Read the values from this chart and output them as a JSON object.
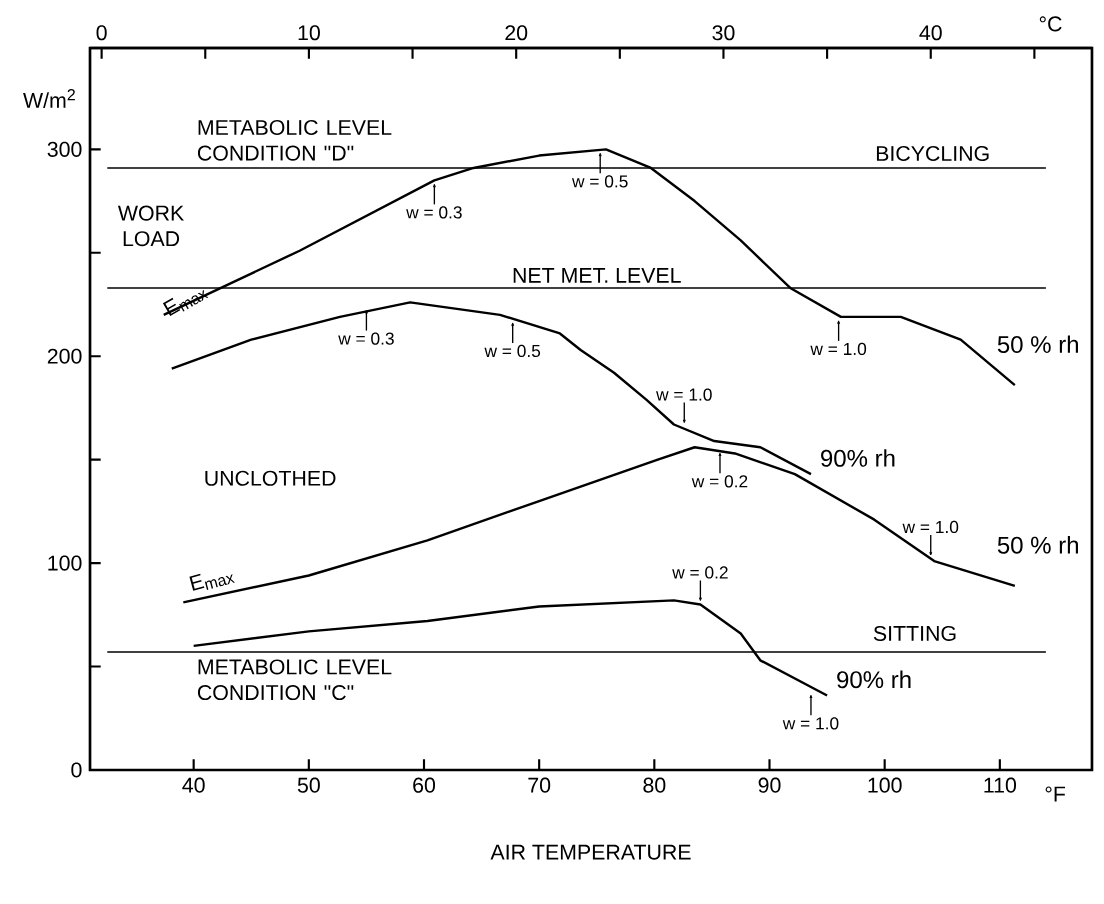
{
  "chart_data": {
    "type": "line",
    "xlabel": "AIR TEMPERATURE",
    "ylabel": "W/m$^{2}$",
    "xlim": [
      31,
      118
    ],
    "xticks": [
      40,
      50,
      60,
      70,
      80,
      90,
      100,
      110
    ],
    "x2lim": [
      -0.56,
      47.78
    ],
    "x2ticks": [
      0,
      {
        "value": 5,
        "label": null
      },
      10,
      {
        "value": 15,
        "label": null
      },
      20,
      {
        "value": 25,
        "label": null
      },
      30,
      {
        "value": 35,
        "label": null
      },
      40,
      {
        "value": 45,
        "label": null
      }
    ],
    "ylim": [
      0,
      349
    ],
    "yticks": [
      0,
      {
        "value": 50,
        "label": null
      },
      100,
      {
        "value": 150,
        "label": null
      },
      200,
      {
        "value": 250,
        "label": null
      },
      300
    ],
    "grid": false,
    "marker": "none",
    "line_style": "solid",
    "series": [
      {
        "name": "50 % rh",
        "color": "#000000",
        "x": [
          37.4,
          49.2,
          60.9,
          64.3,
          70,
          75.8,
          79.7,
          83.5,
          87.5,
          91.8,
          96.2,
          101.4,
          106.6,
          111.3
        ],
        "values": [
          220,
          251,
          285,
          291,
          297,
          300,
          291,
          275,
          256,
          233,
          219,
          219,
          208,
          186
        ]
      },
      {
        "name": "90% rh",
        "color": "#000000",
        "x": [
          38.1,
          45,
          52.7,
          58.8,
          66.6,
          71.8,
          73.6,
          76.5,
          79.3,
          81.7,
          85.2,
          89.2,
          93.6
        ],
        "values": [
          194,
          208,
          219,
          226,
          220,
          211,
          203,
          192,
          179,
          167,
          159,
          156,
          143
        ]
      },
      {
        "name": "50 % rh",
        "color": "#000000",
        "x": [
          39.1,
          50,
          60.3,
          70,
          80.3,
          83.5,
          87,
          92.2,
          99.1,
          104.3,
          111.3
        ],
        "values": [
          81,
          94,
          111,
          130,
          150,
          156,
          153,
          143,
          121,
          101,
          89
        ]
      },
      {
        "name": "90% rh",
        "color": "#000000",
        "x": [
          40,
          50,
          60.3,
          70,
          81.7,
          84,
          87.5,
          89.2,
          95
        ],
        "values": [
          60,
          67,
          72,
          79,
          82,
          80,
          66,
          53,
          36
        ]
      }
    ],
    "ref_lines": [
      {
        "axis": "y",
        "value": 291,
        "label": "METABOLIC LEVEL CONDITION \"D\""
      },
      {
        "axis": "y",
        "value": 233,
        "label": "NET MET. LEVEL"
      },
      {
        "axis": "y",
        "value": 57,
        "label": "METABOLIC LEVEL CONDITION \"C\""
      }
    ],
    "annotations": [
      {
        "text": "w = 0.3",
        "x": 60.9,
        "y": 285
      },
      {
        "text": "w = 0.5",
        "x": 75.3,
        "y": 300
      },
      {
        "text": "w = 1.0",
        "x": 96,
        "y": 219
      },
      {
        "text": "w = 0.3",
        "x": 55,
        "y": 224
      },
      {
        "text": "w = 0.5",
        "x": 67.7,
        "y": 218
      },
      {
        "text": "w = 1.0",
        "x": 82.6,
        "y": 166
      },
      {
        "text": "w = 0.2",
        "x": 85.7,
        "y": 155
      },
      {
        "text": "w = 1.0",
        "x": 104,
        "y": 102
      },
      {
        "text": "w = 0.2",
        "x": 84,
        "y": 80
      },
      {
        "text": "w = 1.0",
        "x": 93.6,
        "y": 38
      },
      "WORK LOAD",
      "UNCLOTHED",
      "BICYCLING",
      "SITTING",
      "E$_{max}$",
      "E$_{max}$",
      "°C",
      "°F"
    ]
  }
}
